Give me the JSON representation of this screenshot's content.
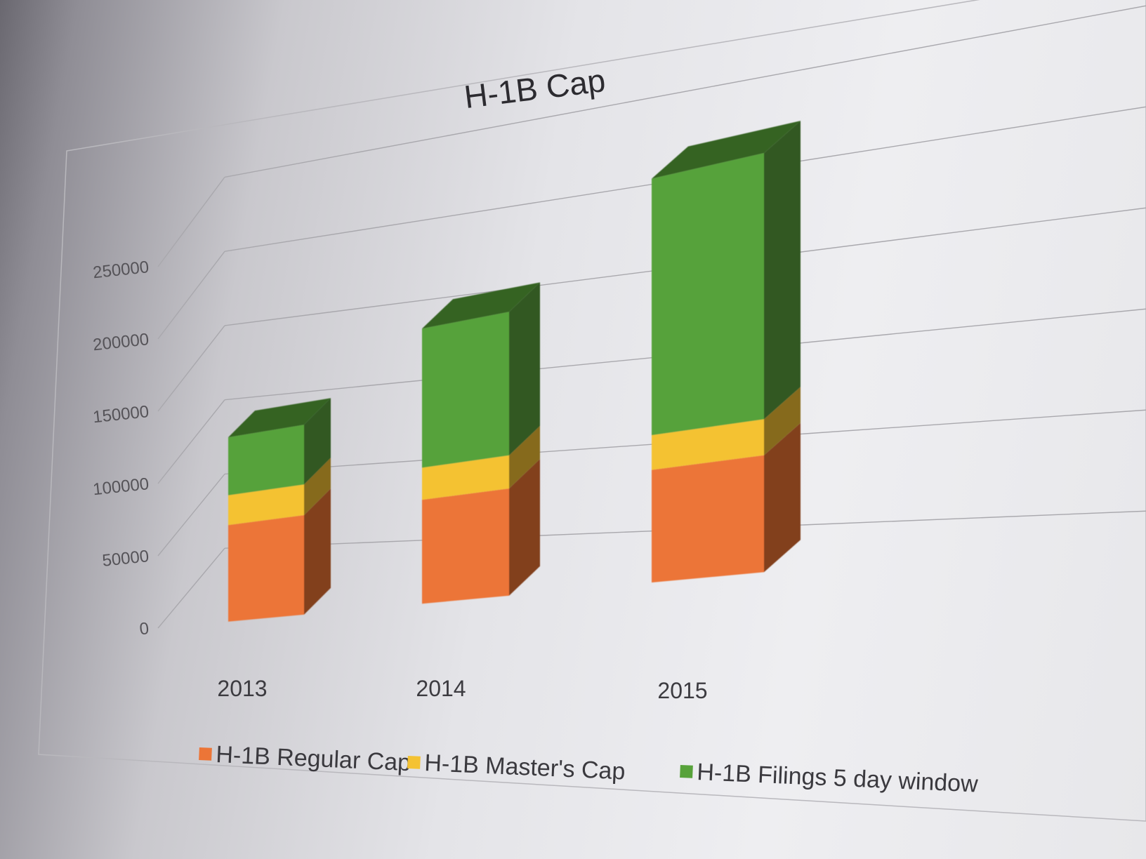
{
  "chart_data": {
    "type": "bar",
    "subtype": "stacked-3d-column",
    "title": "H-1B Cap",
    "categories": [
      "2013",
      "2014",
      "2015"
    ],
    "series": [
      {
        "name": "H-1B Regular Cap",
        "values": [
          65000,
          65000,
          65000
        ],
        "color": "#ec7537"
      },
      {
        "name": "H-1B Master's Cap",
        "values": [
          20000,
          20000,
          20000
        ],
        "color": "#f4c232"
      },
      {
        "name": "H-1B Filings 5 day window",
        "values": [
          39000,
          87000,
          148000
        ],
        "color": "#57a23a"
      }
    ],
    "yticks": [
      "0",
      "50000",
      "100000",
      "150000",
      "200000",
      "250000"
    ],
    "ylim": [
      0,
      250000
    ],
    "grid": true,
    "legend": "bottom"
  }
}
